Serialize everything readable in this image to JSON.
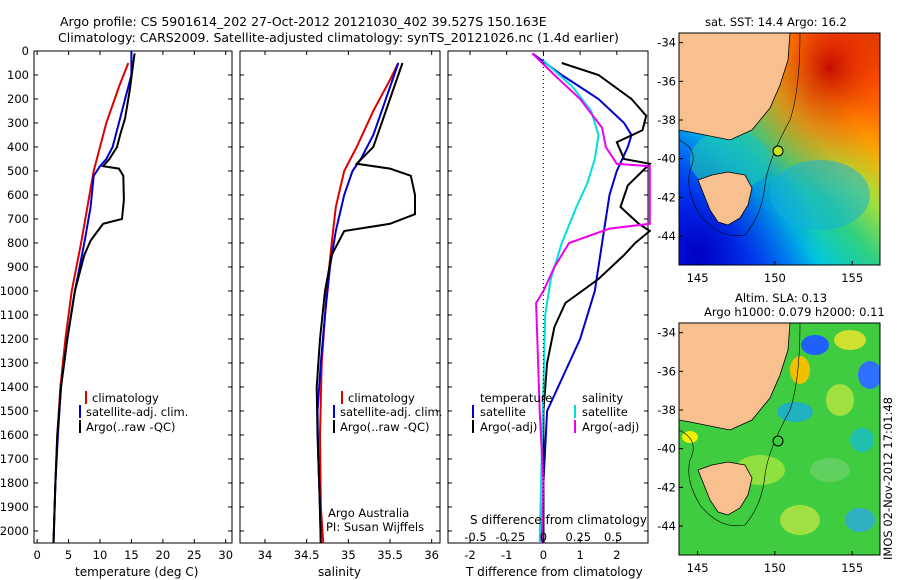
{
  "title_line1": "Argo profile: CS 5901614_202 27-Oct-2012 20121030_402 39.527S 150.163E",
  "title_line2": "Climatology: CARS2009. Satellite-adjusted climatology: synTS_20121026.nc (1.4d earlier)",
  "colors": {
    "climatology": "#dd0000",
    "satellite": "#0000cc",
    "argo": "#000000",
    "salinity_sat": "#00dddd",
    "salinity_argo": "#ee00ee"
  },
  "depth_axis": {
    "min": 0,
    "max": 2050,
    "ticks": [
      0,
      100,
      200,
      300,
      400,
      500,
      600,
      700,
      800,
      900,
      1000,
      1100,
      1200,
      1300,
      1400,
      1500,
      1600,
      1700,
      1800,
      1900,
      2000
    ]
  },
  "chart_data": [
    {
      "type": "line",
      "name": "temperature",
      "xlabel": "temperature (deg C)",
      "xlim": [
        -0.5,
        31
      ],
      "xticks": [
        0,
        5,
        10,
        15,
        20,
        25,
        30
      ],
      "legend": [
        "climatology",
        "satellite-adj. clim.",
        "Argo(..raw -QC)"
      ],
      "series": [
        {
          "key": "climatology",
          "color": "#dd0000",
          "points": [
            [
              14.5,
              50
            ],
            [
              13,
              150
            ],
            [
              11,
              300
            ],
            [
              9,
              500
            ],
            [
              8,
              650
            ],
            [
              7,
              800
            ],
            [
              5.5,
              1000
            ],
            [
              4.5,
              1200
            ],
            [
              3.7,
              1400
            ],
            [
              3.2,
              1600
            ],
            [
              2.9,
              1800
            ],
            [
              2.6,
              2050
            ]
          ]
        },
        {
          "key": "satellite",
          "color": "#0000cc",
          "points": [
            [
              15,
              0
            ],
            [
              15,
              100
            ],
            [
              14,
              200
            ],
            [
              13,
              300
            ],
            [
              12,
              400
            ],
            [
              11,
              450
            ],
            [
              10,
              480
            ],
            [
              9,
              520
            ],
            [
              8.5,
              650
            ],
            [
              7.5,
              800
            ],
            [
              6,
              1000
            ],
            [
              4.8,
              1200
            ],
            [
              3.8,
              1400
            ],
            [
              3.3,
              1600
            ],
            [
              2.9,
              1800
            ],
            [
              2.6,
              2050
            ]
          ]
        },
        {
          "key": "argo",
          "color": "#000000",
          "points": [
            [
              15.5,
              10
            ],
            [
              15.3,
              50
            ],
            [
              14.8,
              150
            ],
            [
              14.5,
              200
            ],
            [
              14,
              280
            ],
            [
              13.2,
              350
            ],
            [
              12.7,
              400
            ],
            [
              11.5,
              450
            ],
            [
              10.5,
              480
            ],
            [
              13,
              490
            ],
            [
              13.7,
              520
            ],
            [
              13.8,
              620
            ],
            [
              13.5,
              700
            ],
            [
              10.5,
              720
            ],
            [
              8.5,
              790
            ],
            [
              7.5,
              850
            ],
            [
              6,
              1000
            ],
            [
              4.8,
              1200
            ],
            [
              3.8,
              1400
            ],
            [
              3.2,
              1600
            ],
            [
              2.9,
              1800
            ],
            [
              2.6,
              2050
            ]
          ]
        }
      ]
    },
    {
      "type": "line",
      "name": "salinity",
      "xlabel": "salinity",
      "xlim": [
        33.7,
        36.1
      ],
      "xticks": [
        34,
        34.5,
        35,
        35.5,
        36
      ],
      "xticklabels": [
        "34",
        "34.5",
        "35",
        "35.5",
        "36"
      ],
      "legend": [
        "climatology",
        "satellite-adj. clim.",
        "Argo(..raw -QC)"
      ],
      "annotation": [
        "Argo Australia",
        "PI: Susan Wijffels"
      ],
      "series": [
        {
          "key": "climatology",
          "color": "#dd0000",
          "points": [
            [
              35.6,
              50
            ],
            [
              35.5,
              120
            ],
            [
              35.3,
              250
            ],
            [
              35.1,
              400
            ],
            [
              34.95,
              500
            ],
            [
              34.85,
              650
            ],
            [
              34.8,
              800
            ],
            [
              34.74,
              1000
            ],
            [
              34.68,
              1300
            ],
            [
              34.66,
              1600
            ],
            [
              34.67,
              1900
            ],
            [
              34.7,
              2050
            ]
          ]
        },
        {
          "key": "satellite",
          "color": "#0000cc",
          "points": [
            [
              35.6,
              50
            ],
            [
              35.55,
              100
            ],
            [
              35.5,
              150
            ],
            [
              35.4,
              250
            ],
            [
              35.3,
              350
            ],
            [
              35.15,
              450
            ],
            [
              35.05,
              500
            ],
            [
              34.95,
              600
            ],
            [
              34.85,
              750
            ],
            [
              34.78,
              900
            ],
            [
              34.72,
              1100
            ],
            [
              34.67,
              1300
            ],
            [
              34.63,
              1500
            ],
            [
              34.64,
              1700
            ],
            [
              34.66,
              1900
            ],
            [
              34.67,
              2050
            ]
          ]
        },
        {
          "key": "argo",
          "color": "#000000",
          "points": [
            [
              35.65,
              50
            ],
            [
              35.6,
              100
            ],
            [
              35.5,
              200
            ],
            [
              35.4,
              300
            ],
            [
              35.3,
              400
            ],
            [
              35.1,
              470
            ],
            [
              35.5,
              490
            ],
            [
              35.75,
              520
            ],
            [
              35.8,
              600
            ],
            [
              35.8,
              680
            ],
            [
              35.5,
              720
            ],
            [
              34.95,
              750
            ],
            [
              34.8,
              850
            ],
            [
              34.72,
              1000
            ],
            [
              34.66,
              1200
            ],
            [
              34.62,
              1400
            ],
            [
              34.63,
              1600
            ],
            [
              34.65,
              1800
            ],
            [
              34.67,
              2050
            ]
          ]
        }
      ]
    },
    {
      "type": "line",
      "name": "difference",
      "xlabel": "T difference from climatology",
      "xlabel_top": "S difference from climatology",
      "xlim": [
        -2.6,
        2.85
      ],
      "xticks": [
        -2,
        -1,
        0,
        1,
        2
      ],
      "s_ticks": [
        {
          "label": "-0.5",
          "x": -1.85
        },
        {
          "label": "-0.25",
          "x": -0.9
        },
        {
          "label": "0",
          "x": 0
        },
        {
          "label": "0.25",
          "x": 0.95
        },
        {
          "label": "0.5",
          "x": 1.9
        }
      ],
      "legend_temperature": [
        "temperature",
        "satellite",
        "Argo(-adj)"
      ],
      "legend_salinity": [
        "salinity",
        "satellite",
        "Argo(-adj)"
      ],
      "series": [
        {
          "key": "t_satellite",
          "color": "#0000cc",
          "points": [
            [
              -0.3,
              10
            ],
            [
              0.5,
              100
            ],
            [
              1.5,
              200
            ],
            [
              2.2,
              300
            ],
            [
              2.4,
              350
            ],
            [
              2.3,
              400
            ],
            [
              2.0,
              500
            ],
            [
              1.8,
              600
            ],
            [
              1.6,
              800
            ],
            [
              1.4,
              1000
            ],
            [
              1.0,
              1200
            ],
            [
              0.1,
              1500
            ],
            [
              0,
              1800
            ],
            [
              0,
              2050
            ]
          ]
        },
        {
          "key": "t_argo",
          "color": "#000000",
          "points": [
            [
              0.5,
              50
            ],
            [
              1.5,
              100
            ],
            [
              2.4,
              200
            ],
            [
              2.8,
              270
            ],
            [
              2.7,
              330
            ],
            [
              2.0,
              380
            ],
            [
              2.2,
              450
            ],
            [
              2.9,
              470
            ],
            [
              2.7,
              500
            ],
            [
              2.3,
              560
            ],
            [
              2.1,
              650
            ],
            [
              2.6,
              720
            ],
            [
              2.9,
              750
            ],
            [
              2.5,
              800
            ],
            [
              2.2,
              850
            ],
            [
              1.5,
              950
            ],
            [
              0.6,
              1050
            ],
            [
              0.3,
              1150
            ],
            [
              0.1,
              1300
            ],
            [
              0,
              1500
            ],
            [
              0,
              2050
            ]
          ]
        },
        {
          "key": "s_satellite",
          "color": "#00dddd",
          "points": [
            [
              0,
              40
            ],
            [
              0.8,
              150
            ],
            [
              1.3,
              250
            ],
            [
              1.5,
              350
            ],
            [
              1.4,
              450
            ],
            [
              1.2,
              550
            ],
            [
              0.9,
              650
            ],
            [
              0.5,
              800
            ],
            [
              0.2,
              950
            ],
            [
              0.05,
              1100
            ],
            [
              0,
              1400
            ],
            [
              -0.05,
              1700
            ],
            [
              -0.1,
              2050
            ]
          ]
        },
        {
          "key": "s_argo",
          "color": "#ee00ee",
          "points": [
            [
              -0.3,
              10
            ],
            [
              0.3,
              100
            ],
            [
              1.0,
              200
            ],
            [
              1.6,
              320
            ],
            [
              1.7,
              400
            ],
            [
              2.0,
              470
            ],
            [
              2.9,
              480
            ],
            [
              2.9,
              720
            ],
            [
              1.8,
              740
            ],
            [
              0.7,
              800
            ],
            [
              0.3,
              900
            ],
            [
              0,
              1000
            ],
            [
              -0.2,
              1050
            ],
            [
              -0.1,
              1500
            ],
            [
              0,
              1800
            ],
            [
              -0.05,
              2050
            ]
          ]
        }
      ]
    },
    {
      "type": "heatmap",
      "name": "sst-map",
      "title": "sat. SST: 14.4  Argo: 16.2",
      "xlim": [
        143.8,
        156.8
      ],
      "ylim": [
        -45.5,
        -33.5
      ],
      "xticks": [
        145,
        150,
        155
      ],
      "yticks": [
        -34,
        -36,
        -38,
        -40,
        -42,
        -44
      ],
      "argo_position": [
        150.163,
        -39.527
      ]
    },
    {
      "type": "heatmap",
      "name": "sla-map",
      "title_line1": "Altim. SLA: 0.13",
      "title_line2": "Argo h1000: 0.079  h2000: 0.11",
      "xlim": [
        143.8,
        156.8
      ],
      "ylim": [
        -45.5,
        -33.5
      ],
      "xticks": [
        145,
        150,
        155
      ],
      "yticks": [
        -34,
        -36,
        -38,
        -40,
        -42,
        -44
      ],
      "argo_position": [
        150.163,
        -39.527
      ]
    }
  ],
  "stamp": "IMOS 02-Nov-2012 17:01:48"
}
